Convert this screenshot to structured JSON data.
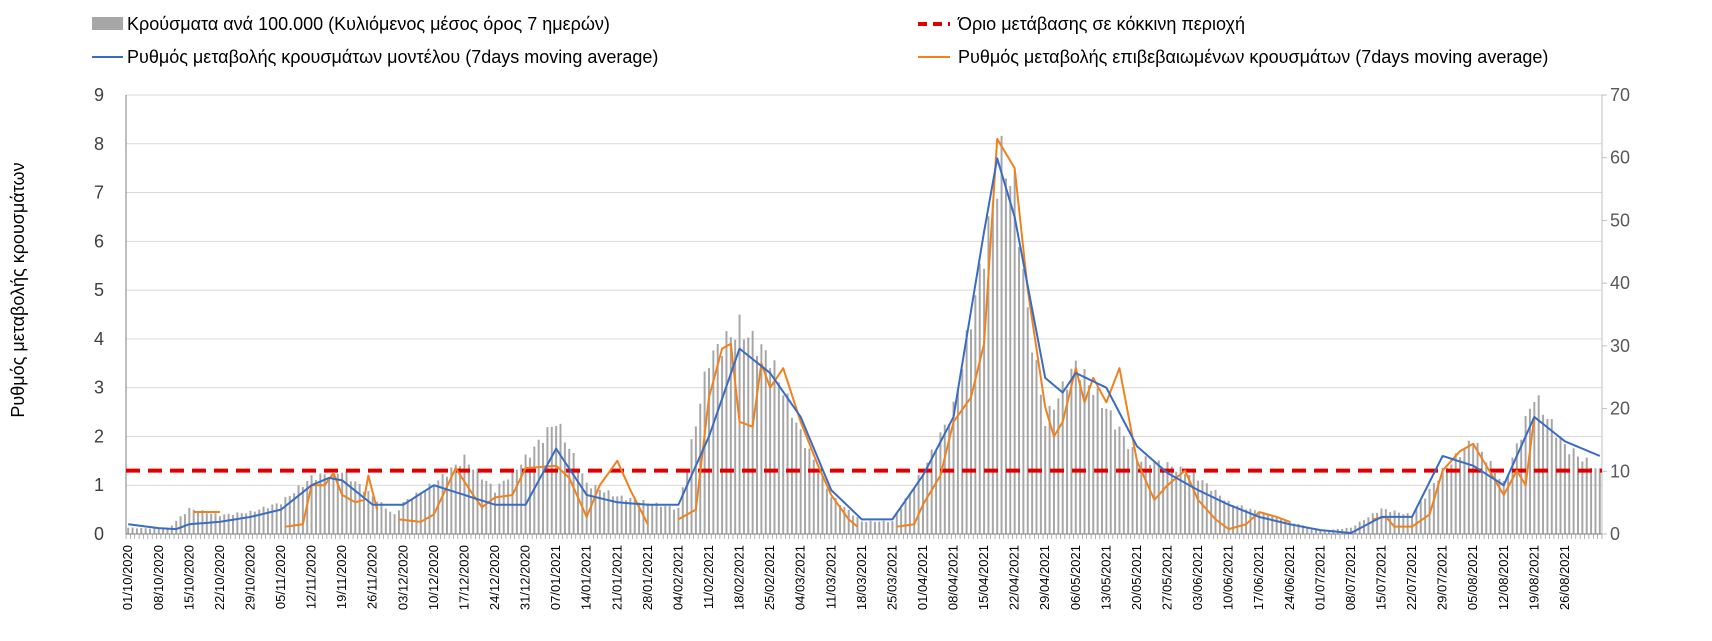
{
  "chart_data": {
    "type": "bar+line",
    "title": "",
    "ylabel": "Ρυθμός μεταβολής κρουσμάτων",
    "ylim_left": [
      0,
      9
    ],
    "ylim_right": [
      0,
      70
    ],
    "yticks_left": [
      "0",
      "1",
      "2",
      "3",
      "4",
      "5",
      "6",
      "7",
      "8",
      "9"
    ],
    "yticks_right": [
      "0",
      "10",
      "20",
      "30",
      "40",
      "50",
      "60",
      "70"
    ],
    "grid": true,
    "legend": {
      "placement": "top",
      "entries": [
        {
          "key": "bars",
          "label": "Κρούσματα ανά 100.000 (Κυλιόμενος μέσος όρος 7 ημερών)",
          "color": "#a6a6a6"
        },
        {
          "key": "threshold",
          "label": "Όριο μετάβασης σε κόκκινη περιοχή",
          "color": "#e00000"
        },
        {
          "key": "model",
          "label": "Ρυθμός μεταβολής κρουσμάτων μοντέλου (7days moving average)",
          "color": "#3a6cc4"
        },
        {
          "key": "confirmed",
          "label": "Ρυθμός μεταβολής επιβεβαιωμένων κρουσμάτων (7days moving average)",
          "color": "#f0821e"
        }
      ]
    },
    "x_start": "01/10/2020",
    "x_end": "03/09/2021",
    "x_tick_labels": [
      "01/10/2020",
      "08/10/2020",
      "15/10/2020",
      "22/10/2020",
      "29/10/2020",
      "05/11/2020",
      "12/11/2020",
      "19/11/2020",
      "26/11/2020",
      "03/12/2020",
      "10/12/2020",
      "17/12/2020",
      "24/12/2020",
      "31/12/2020",
      "07/01/2021",
      "14/01/2021",
      "21/01/2021",
      "28/01/2021",
      "04/02/2021",
      "11/02/2021",
      "18/02/2021",
      "25/02/2021",
      "04/03/2021",
      "11/03/2021",
      "18/03/2021",
      "25/03/2021",
      "01/04/2021",
      "08/04/2021",
      "15/04/2021",
      "22/04/2021",
      "29/04/2021",
      "06/05/2021",
      "13/05/2021",
      "20/05/2021",
      "27/05/2021",
      "03/06/2021",
      "10/06/2021",
      "17/06/2021",
      "24/06/2021",
      "01/07/2021",
      "08/07/2021",
      "15/07/2021",
      "22/07/2021",
      "29/07/2021",
      "05/08/2021",
      "12/08/2021",
      "19/08/2021",
      "26/08/2021"
    ],
    "threshold_value": 1.3,
    "series": [
      {
        "name": "Κρούσματα ανά 100.000 (Κυλιόμενος μέσος όρος 7 ημερών)",
        "type": "bar",
        "axis": "right",
        "anchors": [
          [
            "01/10/2020",
            1
          ],
          [
            "10/10/2020",
            0.8
          ],
          [
            "15/10/2020",
            4
          ],
          [
            "22/10/2020",
            3
          ],
          [
            "29/10/2020",
            3.5
          ],
          [
            "05/11/2020",
            5
          ],
          [
            "12/11/2020",
            9
          ],
          [
            "19/11/2020",
            10
          ],
          [
            "26/11/2020",
            6
          ],
          [
            "01/12/2020",
            3
          ],
          [
            "03/12/2020",
            5
          ],
          [
            "10/12/2020",
            8
          ],
          [
            "17/12/2020",
            12
          ],
          [
            "24/12/2020",
            7
          ],
          [
            "31/12/2020",
            12
          ],
          [
            "07/01/2021",
            18
          ],
          [
            "14/01/2021",
            8
          ],
          [
            "21/01/2021",
            6
          ],
          [
            "28/01/2021",
            5
          ],
          [
            "04/02/2021",
            4
          ],
          [
            "11/02/2021",
            28
          ],
          [
            "18/02/2021",
            33
          ],
          [
            "25/02/2021",
            28
          ],
          [
            "04/03/2021",
            16
          ],
          [
            "11/03/2021",
            6
          ],
          [
            "18/03/2021",
            2
          ],
          [
            "25/03/2021",
            2
          ],
          [
            "01/04/2021",
            10
          ],
          [
            "08/04/2021",
            20
          ],
          [
            "15/04/2021",
            45
          ],
          [
            "19/04/2021",
            60
          ],
          [
            "22/04/2021",
            55
          ],
          [
            "25/04/2021",
            35
          ],
          [
            "29/04/2021",
            18
          ],
          [
            "06/05/2021",
            27
          ],
          [
            "13/05/2021",
            20
          ],
          [
            "20/05/2021",
            12
          ],
          [
            "27/05/2021",
            11
          ],
          [
            "03/06/2021",
            9
          ],
          [
            "10/06/2021",
            5
          ],
          [
            "17/06/2021",
            3.5
          ],
          [
            "24/06/2021",
            2
          ],
          [
            "01/07/2021",
            0.5
          ],
          [
            "08/07/2021",
            1
          ],
          [
            "15/07/2021",
            4
          ],
          [
            "22/07/2021",
            3
          ],
          [
            "29/07/2021",
            10
          ],
          [
            "05/08/2021",
            15
          ],
          [
            "12/08/2021",
            8
          ],
          [
            "19/08/2021",
            22
          ],
          [
            "26/08/2021",
            14
          ],
          [
            "03/09/2021",
            10
          ]
        ]
      },
      {
        "name": "Ρυθμός μεταβολής κρουσμάτων μοντέλου (7days moving average)",
        "type": "line",
        "axis": "left",
        "anchors": [
          [
            "01/10/2020",
            0.2
          ],
          [
            "08/10/2020",
            0.12
          ],
          [
            "12/10/2020",
            0.1
          ],
          [
            "15/10/2020",
            0.2
          ],
          [
            "22/10/2020",
            0.25
          ],
          [
            "29/10/2020",
            0.35
          ],
          [
            "05/11/2020",
            0.5
          ],
          [
            "12/11/2020",
            1.0
          ],
          [
            "16/11/2020",
            1.15
          ],
          [
            "19/11/2020",
            1.1
          ],
          [
            "26/11/2020",
            0.6
          ],
          [
            "03/12/2020",
            0.6
          ],
          [
            "10/12/2020",
            1.0
          ],
          [
            "17/12/2020",
            0.8
          ],
          [
            "24/12/2020",
            0.6
          ],
          [
            "31/12/2020",
            0.6
          ],
          [
            "07/01/2021",
            1.75
          ],
          [
            "14/01/2021",
            0.8
          ],
          [
            "21/01/2021",
            0.65
          ],
          [
            "28/01/2021",
            0.6
          ],
          [
            "04/02/2021",
            0.6
          ],
          [
            "11/02/2021",
            2.0
          ],
          [
            "18/02/2021",
            3.8
          ],
          [
            "25/02/2021",
            3.3
          ],
          [
            "04/03/2021",
            2.4
          ],
          [
            "11/03/2021",
            0.9
          ],
          [
            "18/03/2021",
            0.3
          ],
          [
            "25/03/2021",
            0.3
          ],
          [
            "01/04/2021",
            1.2
          ],
          [
            "08/04/2021",
            2.4
          ],
          [
            "15/04/2021",
            6.2
          ],
          [
            "18/04/2021",
            7.7
          ],
          [
            "22/04/2021",
            6.5
          ],
          [
            "29/04/2021",
            3.2
          ],
          [
            "03/05/2021",
            2.9
          ],
          [
            "06/05/2021",
            3.3
          ],
          [
            "13/05/2021",
            3.0
          ],
          [
            "20/05/2021",
            1.8
          ],
          [
            "27/05/2021",
            1.25
          ],
          [
            "03/06/2021",
            0.9
          ],
          [
            "10/06/2021",
            0.6
          ],
          [
            "17/06/2021",
            0.35
          ],
          [
            "24/06/2021",
            0.2
          ],
          [
            "01/07/2021",
            0.08
          ],
          [
            "08/07/2021",
            0.02
          ],
          [
            "15/07/2021",
            0.35
          ],
          [
            "22/07/2021",
            0.35
          ],
          [
            "29/07/2021",
            1.6
          ],
          [
            "05/08/2021",
            1.4
          ],
          [
            "12/08/2021",
            1.0
          ],
          [
            "19/08/2021",
            2.4
          ],
          [
            "26/08/2021",
            1.9
          ],
          [
            "03/09/2021",
            1.6
          ]
        ]
      },
      {
        "name": "Ρυθμός μεταβολής επιβεβαιωμένων κρουσμάτων (7days moving average)",
        "type": "line",
        "axis": "left",
        "anchors": [
          [
            "01/10/2020",
            null
          ],
          [
            "15/10/2020",
            null
          ],
          [
            "16/10/2020",
            0.45
          ],
          [
            "22/10/2020",
            0.45
          ],
          [
            "23/10/2020",
            null
          ],
          [
            "05/11/2020",
            null
          ],
          [
            "06/11/2020",
            0.15
          ],
          [
            "10/11/2020",
            0.2
          ],
          [
            "12/11/2020",
            1.0
          ],
          [
            "15/11/2020",
            1.0
          ],
          [
            "17/11/2020",
            1.25
          ],
          [
            "19/11/2020",
            0.8
          ],
          [
            "22/11/2020",
            0.65
          ],
          [
            "24/11/2020",
            0.7
          ],
          [
            "25/11/2020",
            1.2
          ],
          [
            "27/11/2020",
            0.5
          ],
          [
            "29/11/2020",
            null
          ],
          [
            "02/12/2020",
            0.3
          ],
          [
            "07/12/2020",
            0.25
          ],
          [
            "10/12/2020",
            0.4
          ],
          [
            "15/12/2020",
            1.35
          ],
          [
            "19/12/2020",
            0.8
          ],
          [
            "21/12/2020",
            0.55
          ],
          [
            "24/12/2020",
            0.75
          ],
          [
            "28/12/2020",
            0.8
          ],
          [
            "31/12/2020",
            1.35
          ],
          [
            "07/01/2021",
            1.4
          ],
          [
            "10/01/2021",
            1.15
          ],
          [
            "14/01/2021",
            0.35
          ],
          [
            "17/01/2021",
            1.0
          ],
          [
            "21/01/2021",
            1.5
          ],
          [
            "24/01/2021",
            0.9
          ],
          [
            "28/01/2021",
            0.2
          ],
          [
            "30/01/2021",
            null
          ],
          [
            "03/02/2021",
            null
          ],
          [
            "04/02/2021",
            0.3
          ],
          [
            "08/02/2021",
            0.5
          ],
          [
            "11/02/2021",
            2.8
          ],
          [
            "14/02/2021",
            3.8
          ],
          [
            "16/02/2021",
            3.9
          ],
          [
            "18/02/2021",
            2.3
          ],
          [
            "21/02/2021",
            2.2
          ],
          [
            "23/02/2021",
            3.5
          ],
          [
            "25/02/2021",
            3.0
          ],
          [
            "28/02/2021",
            3.4
          ],
          [
            "04/03/2021",
            2.3
          ],
          [
            "08/03/2021",
            1.4
          ],
          [
            "11/03/2021",
            0.8
          ],
          [
            "15/03/2021",
            0.3
          ],
          [
            "17/03/2021",
            0.15
          ],
          [
            "19/03/2021",
            null
          ],
          [
            "25/03/2021",
            null
          ],
          [
            "26/03/2021",
            0.15
          ],
          [
            "30/03/2021",
            0.2
          ],
          [
            "01/04/2021",
            0.6
          ],
          [
            "05/04/2021",
            1.2
          ],
          [
            "08/04/2021",
            2.3
          ],
          [
            "12/04/2021",
            2.8
          ],
          [
            "15/04/2021",
            3.9
          ],
          [
            "18/04/2021",
            8.1
          ],
          [
            "22/04/2021",
            7.5
          ],
          [
            "25/04/2021",
            5.0
          ],
          [
            "29/04/2021",
            2.6
          ],
          [
            "01/05/2021",
            2.0
          ],
          [
            "03/05/2021",
            2.3
          ],
          [
            "06/05/2021",
            3.4
          ],
          [
            "08/05/2021",
            2.7
          ],
          [
            "10/05/2021",
            3.2
          ],
          [
            "13/05/2021",
            2.7
          ],
          [
            "16/05/2021",
            3.4
          ],
          [
            "20/05/2021",
            1.5
          ],
          [
            "24/05/2021",
            0.7
          ],
          [
            "27/05/2021",
            1.0
          ],
          [
            "31/05/2021",
            1.3
          ],
          [
            "03/06/2021",
            0.7
          ],
          [
            "07/06/2021",
            0.3
          ],
          [
            "10/06/2021",
            0.1
          ],
          [
            "14/06/2021",
            0.2
          ],
          [
            "17/06/2021",
            0.45
          ],
          [
            "21/06/2021",
            0.35
          ],
          [
            "24/06/2021",
            0.25
          ],
          [
            "26/06/2021",
            null
          ],
          [
            "12/07/2021",
            null
          ],
          [
            "13/07/2021",
            0.3
          ],
          [
            "16/07/2021",
            0.35
          ],
          [
            "18/07/2021",
            0.15
          ],
          [
            "22/07/2021",
            0.15
          ],
          [
            "26/07/2021",
            0.4
          ],
          [
            "29/07/2021",
            1.3
          ],
          [
            "02/08/2021",
            1.7
          ],
          [
            "05/08/2021",
            1.85
          ],
          [
            "08/08/2021",
            1.4
          ],
          [
            "12/08/2021",
            0.8
          ],
          [
            "15/08/2021",
            1.3
          ],
          [
            "17/08/2021",
            1.0
          ],
          [
            "19/08/2021",
            2.4
          ],
          [
            "21/08/2021",
            null
          ]
        ]
      }
    ]
  }
}
